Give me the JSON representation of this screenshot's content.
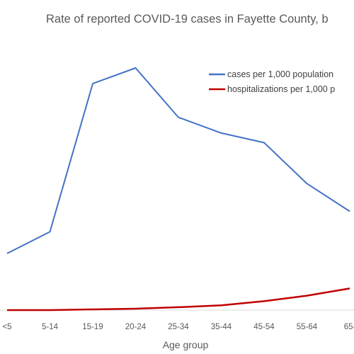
{
  "chart_data": {
    "type": "line",
    "title": "Rate of reported COVID-19 cases in Fayette County, b",
    "xlabel": "Age group",
    "ylabel": "",
    "categories": [
      "<5",
      "5-14",
      "15-19",
      "20-24",
      "25-34",
      "35-44",
      "45-54",
      "55-64",
      "65-"
    ],
    "ylim": [
      0,
      100
    ],
    "grid": false,
    "legend": "top-right",
    "series": [
      {
        "name": "cases per 1,000 population",
        "color": "#4472C4",
        "values": [
          23.5,
          32.5,
          94,
          100.5,
          80,
          73.5,
          69.5,
          52.5,
          41
        ]
      },
      {
        "name": "hospitalizations per 1,000 p",
        "color": "#C00000",
        "values": [
          0,
          0,
          0.3,
          0.6,
          1.2,
          2,
          3.7,
          6,
          9
        ]
      }
    ]
  }
}
